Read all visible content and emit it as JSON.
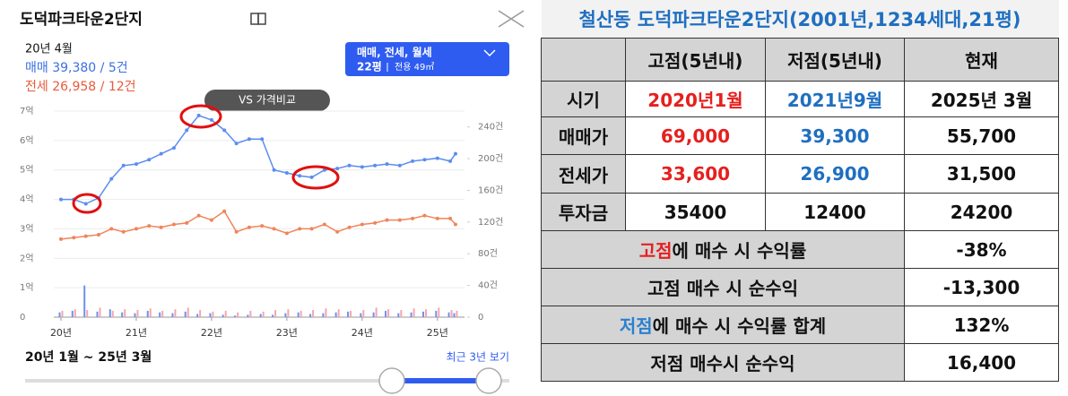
{
  "panel": {
    "name": "도덕파크타운2단지",
    "date": "20년 4월",
    "sale": "매매 39,380 / 5건",
    "jeonse": "전세 26,958 / 12건",
    "filter": "매매, 전세, 월세",
    "size": "22평",
    "area": "전용 49㎡",
    "compare": "VS 가격비교",
    "range": "20년 1월 ~ 25년 3월",
    "recent": "최근 3년 보기"
  },
  "chart_data": {
    "type": "line",
    "x": [
      20,
      20.17,
      20.33,
      20.5,
      20.67,
      20.83,
      21,
      21.17,
      21.33,
      21.5,
      21.67,
      21.83,
      22,
      22.17,
      22.33,
      22.5,
      22.67,
      22.83,
      23,
      23.17,
      23.33,
      23.5,
      23.67,
      23.83,
      24,
      24.17,
      24.33,
      24.5,
      24.67,
      24.83,
      25,
      25.17,
      25.24
    ],
    "xlim": [
      20,
      25.3
    ],
    "xticks": [
      {
        "value": 20,
        "label": "20년"
      },
      {
        "value": 21,
        "label": "21년"
      },
      {
        "value": 22,
        "label": "22년"
      },
      {
        "value": 23,
        "label": "23년"
      },
      {
        "value": 24,
        "label": "24년"
      },
      {
        "value": 25,
        "label": "25년"
      }
    ],
    "ylim": [
      0,
      7
    ],
    "yticks": [
      0,
      {
        "value": 1,
        "label": "1억"
      },
      {
        "value": 2,
        "label": "2억"
      },
      {
        "value": 3,
        "label": "3억"
      },
      {
        "value": 4,
        "label": "4억"
      },
      {
        "value": 5,
        "label": "5억"
      },
      {
        "value": 6,
        "label": "6억"
      },
      {
        "value": 7,
        "label": "7억"
      }
    ],
    "y2lim": [
      0,
      260
    ],
    "y2ticks": [
      0,
      {
        "value": 40,
        "label": "40건"
      },
      {
        "value": 80,
        "label": "80건"
      },
      {
        "value": 120,
        "label": "120건"
      },
      {
        "value": 160,
        "label": "160건"
      },
      {
        "value": 200,
        "label": "200건"
      },
      {
        "value": 240,
        "label": "240건"
      }
    ],
    "grid": true,
    "series": [
      {
        "color": "#5b8def",
        "values": [
          4.0,
          4.0,
          3.85,
          4.05,
          4.7,
          5.15,
          5.2,
          5.35,
          5.55,
          5.75,
          6.35,
          6.85,
          6.7,
          6.35,
          5.9,
          6.05,
          6.05,
          5.0,
          4.9,
          4.8,
          4.75,
          5.0,
          5.05,
          5.15,
          5.1,
          5.15,
          5.2,
          5.15,
          5.3,
          5.35,
          5.4,
          5.3,
          5.55
        ]
      },
      {
        "color": "#f0845a",
        "values": [
          2.65,
          2.7,
          2.75,
          2.8,
          3.0,
          2.9,
          3.0,
          3.1,
          3.05,
          3.15,
          3.2,
          3.45,
          3.3,
          3.6,
          2.9,
          3.05,
          3.1,
          3.0,
          2.85,
          3.0,
          3.0,
          3.15,
          2.9,
          3.05,
          3.15,
          3.2,
          3.3,
          3.3,
          3.35,
          3.45,
          3.35,
          3.35,
          3.15
        ]
      },
      {
        "type": "bar",
        "axis": "y2",
        "color": "#6f8ff0",
        "values": [
          6,
          8,
          40,
          7,
          10,
          6,
          5,
          8,
          6,
          5,
          7,
          4,
          5,
          3,
          2,
          3,
          4,
          3,
          5,
          6,
          4,
          5,
          6,
          7,
          5,
          6,
          8,
          5,
          6,
          7,
          8,
          6,
          5
        ]
      },
      {
        "type": "bar",
        "axis": "y2",
        "color": "#f4a6b0",
        "values": [
          8,
          10,
          9,
          12,
          8,
          10,
          9,
          11,
          8,
          10,
          12,
          9,
          7,
          8,
          6,
          8,
          7,
          9,
          10,
          8,
          9,
          11,
          10,
          8,
          9,
          12,
          10,
          9,
          11,
          10,
          12,
          9,
          8
        ]
      }
    ]
  },
  "table": {
    "title": "철산동 도덕파크타운2단지(2001년,1234세대,21평)",
    "header": [
      "고점(5년내)",
      "저점(5년내)",
      "현재"
    ],
    "rows": [
      {
        "label": "시기",
        "values": [
          "2020년1월",
          "2021년9월",
          "2025년 3월"
        ]
      },
      {
        "label": "매매가",
        "values": [
          "69,000",
          "39,300",
          "55,700"
        ]
      },
      {
        "label": "전세가",
        "values": [
          "33,600",
          "26,900",
          "31,500"
        ]
      },
      {
        "label": "투자금",
        "values": [
          "35400",
          "12400",
          "24200"
        ]
      }
    ],
    "summary": [
      {
        "highlight": "고점",
        "rest": "에 매수 시 수익률",
        "value": "-38%"
      },
      {
        "rest": "고점 매수 시 순수익",
        "value": "-13,300"
      },
      {
        "highlight": "저점",
        "rest": "에 매수 시 수익률 합계",
        "value": "132%"
      },
      {
        "rest": "저점 매수시 순수익",
        "value": "16,400"
      }
    ]
  }
}
